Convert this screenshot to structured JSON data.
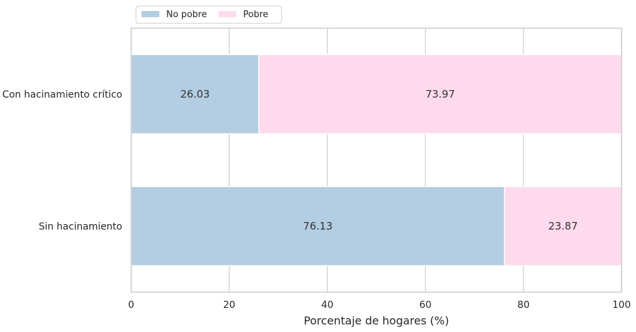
{
  "chart_data": {
    "type": "bar",
    "orientation": "horizontal",
    "stacked": true,
    "categories": [
      "Con hacinamiento crítico",
      "Sin hacinamiento"
    ],
    "series": [
      {
        "name": "No pobre",
        "values": [
          26.03,
          76.13
        ],
        "color": "#b3cde3"
      },
      {
        "name": "Pobre",
        "values": [
          73.97,
          23.87
        ],
        "color": "#fddaec"
      }
    ],
    "data_labels": [
      [
        "26.03",
        "76.13"
      ],
      [
        "73.97",
        "23.87"
      ]
    ],
    "xlabel": "Porcentaje de hogares (%)",
    "ylabel": "",
    "xlim": [
      0,
      100
    ],
    "xticks": [
      0,
      20,
      40,
      60,
      80,
      100
    ],
    "xtick_labels": [
      "0",
      "20",
      "40",
      "60",
      "80",
      "100"
    ],
    "grid": "vertical",
    "legend_position": "top-left"
  }
}
